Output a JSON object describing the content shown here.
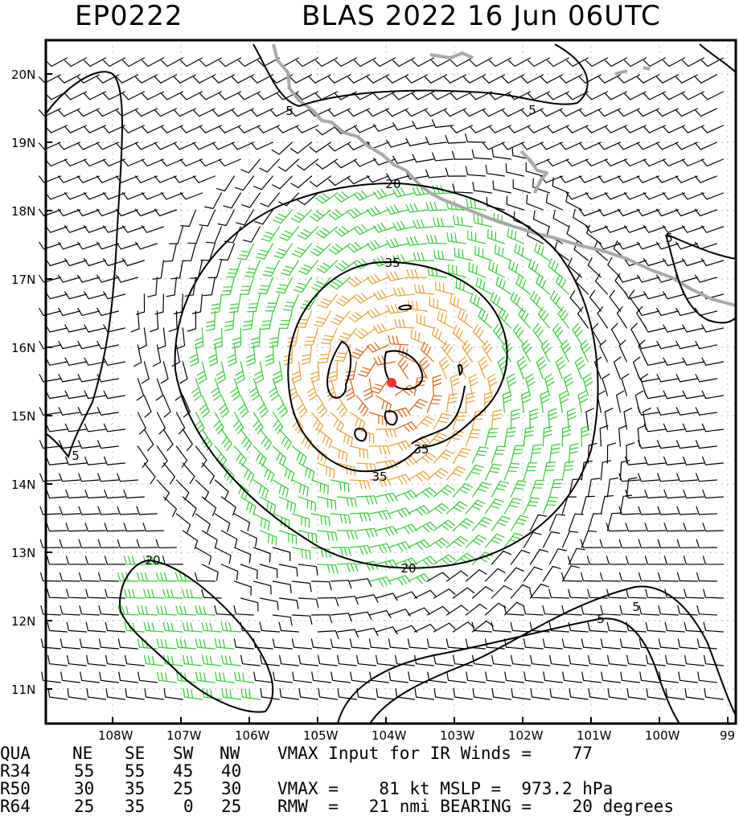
{
  "header": {
    "storm_id": "EP0222",
    "title": "BLAS 2022 16 Jun 06UTC"
  },
  "axes": {
    "lat_labels": [
      "20N",
      "19N",
      "18N",
      "17N",
      "16N",
      "15N",
      "14N",
      "13N",
      "12N",
      "11N"
    ],
    "lon_labels": [
      "108W",
      "107W",
      "106W",
      "105W",
      "104W",
      "103W",
      "102W",
      "101W",
      "100W",
      "99"
    ]
  },
  "contours": {
    "labels": [
      "5",
      "5",
      "5",
      "5",
      "5",
      "5",
      "20",
      "20",
      "20",
      "35",
      "35",
      "35"
    ]
  },
  "colors": {
    "wind_below_34kt": "#000000",
    "wind_34_to_50kt": "#33cc33",
    "wind_50_to_64kt": "#e8a030",
    "wind_above_64kt": "#e06010",
    "center_marker": "#ff3333",
    "coastline": "#a0a0a0"
  },
  "footer": {
    "header_row": [
      "QUA",
      "NE",
      "SE",
      "SW",
      "NW"
    ],
    "rows": [
      {
        "label": "R34",
        "values": [
          "55",
          "55",
          "45",
          "40"
        ]
      },
      {
        "label": "R50",
        "values": [
          "30",
          "35",
          "25",
          "30"
        ]
      },
      {
        "label": "R64",
        "values": [
          "25",
          "35",
          "0",
          "25"
        ]
      }
    ],
    "line1": "VMAX Input for IR Winds =    77",
    "line2": "VMAX =    81 kt MSLP =  973.2 hPa",
    "line3": "RMW  =   21 nmi BEARING =    20 degrees"
  }
}
